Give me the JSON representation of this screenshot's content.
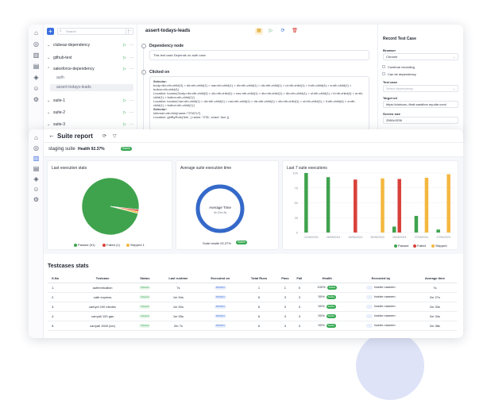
{
  "back_window": {
    "search_placeholder": "Search",
    "more_label": "···",
    "tree": [
      {
        "label": "clubeaz-dependency",
        "expanded": false
      },
      {
        "label": "github-test",
        "expanded": false
      },
      {
        "label": "salesforce-dependency",
        "expanded": true
      },
      {
        "label": "auth",
        "sub": true
      },
      {
        "label": "assert-todays-leads",
        "sub": true,
        "selected": true
      },
      {
        "label": "suite-1",
        "expanded": false
      },
      {
        "label": "suite-2",
        "expanded": false
      },
      {
        "label": "suite-3",
        "expanded": false
      }
    ],
    "title": "assert-todays-leads",
    "steps": [
      {
        "title": "Dependency node",
        "body": "This test case Depends on auth case"
      },
      {
        "title": "Clicked on",
        "body_lines": [
          "Selector:",
          "body>div:nth-child(3) > div:nth-child(1) > nav:nth-child(1) > div:nth-child(1) > div:nth-child(1) > ul:nth-child(1) > li:nth-child(4) > a:nth-child(1) > button:nth-child(1)",
          "Location: locator('body>div:nth-child(3) > div:nth-child(1) > nav:nth-child(1) > div:nth-child(1) > div:nth-child(1) > ul:nth-child(1) > li:nth-child(4) > a:nth-child(1) > button:nth-child(1)')",
          "Location: locator('nav:nth-child(1) > div:nth-child(1) > nav:nth-child(1) > div:nth-child(1) > div:nth-child(1) > ul:nth-child(1) > li:nth-child(4) > a:nth-child(1) > button:nth-child(1)')",
          "Selector:",
          "internal:role=link[name=\"STATU\"]",
          "Location: getByRole('link', { name: 'STA', exact: true })"
        ]
      }
    ],
    "record": {
      "title": "Record Test Case",
      "browser_label": "Browser",
      "browser_value": "Chrome",
      "continue_label": "Continue recording",
      "can_be_dep_label": "Can be dependency",
      "test_case_label": "Test case",
      "test_case_placeholder": "Select dependency",
      "target_label": "Target url",
      "target_value": "https://clubcan--flxsit.sandbox.my.site.com/",
      "screen_label": "Screen size",
      "screen_value": "2560x1536"
    }
  },
  "front_window": {
    "title": "Suite report",
    "suite_name": "staging suite",
    "health_text": "Health 92.37%",
    "health_badge": "Stable",
    "exec_stats": {
      "title": "Last execution stats",
      "legend": [
        "Passed (91)",
        "Failed (1)",
        "Skipped 1"
      ]
    },
    "avg_time": {
      "title": "Average suite execution time",
      "center_label": "Average Time",
      "center_value": "4h 10m 3s",
      "health_text": "Suite health 92.37%",
      "health_badge": "Stable"
    },
    "last7": {
      "title": "Last 7 suite executions",
      "legend": [
        "Passed",
        "Failed",
        "Skipped"
      ]
    },
    "testcases_title": "Testcases stats",
    "table_headers": [
      "S.No",
      "Testcase",
      "Status",
      "Last runtime",
      "Executed on",
      "Total Runs",
      "Pass",
      "Fail",
      "Health",
      "Executed by",
      "Average time"
    ],
    "rows": [
      {
        "no": "1.",
        "name": "authentication",
        "status": "Passed",
        "runtime": "7s",
        "executed": "05/2024",
        "total": "1",
        "pass": "1",
        "fail": "0",
        "health": "100%",
        "health_badge": "Stable",
        "by": "haider naseem",
        "avg": "7s"
      },
      {
        "no": "2.",
        "name": "café express",
        "status": "Passed",
        "runtime": "1m 54s",
        "executed": "05/2024",
        "total": "6",
        "pass": "3",
        "fail": "3",
        "health": "50%",
        "health_badge": "Stable",
        "by": "haider naseem",
        "avg": "2m 27s"
      },
      {
        "no": "3.",
        "name": "camyel 100 electric",
        "status": "Passed",
        "runtime": "1m 52s",
        "executed": "05/2024",
        "total": "6",
        "pass": "3",
        "fail": "3",
        "health": "50%",
        "health_badge": "Stable",
        "by": "haider naseem",
        "avg": "2m 33s"
      },
      {
        "no": "4.",
        "name": "carryall 100 gas",
        "status": "Passed",
        "runtime": "1m 55s",
        "executed": "05/2024",
        "total": "6",
        "pass": "3",
        "fail": "3",
        "health": "50%",
        "health_badge": "Stable",
        "by": "haider naseem",
        "avg": "2m 34s"
      },
      {
        "no": "5.",
        "name": "carryall 1500 (ice)",
        "status": "Passed",
        "runtime": "2m 7s",
        "executed": "05/2024",
        "total": "6",
        "pass": "3",
        "fail": "3",
        "health": "50%",
        "health_badge": "Stable",
        "by": "haider naseem",
        "avg": "2m 38s"
      }
    ]
  },
  "chart_data": [
    {
      "type": "pie",
      "title": "Last execution stats",
      "categories": [
        "Passed (91)",
        "Failed (1)",
        "Skipped 1"
      ],
      "values": [
        91,
        1,
        1
      ],
      "colors": [
        "#3fa34d",
        "#d9413a",
        "#f4b73f"
      ]
    },
    {
      "type": "bar",
      "title": "Last 7 suite executions",
      "categories": [
        "21/06/2024",
        "26/06/2024",
        "26/06/2024",
        "26/06/2024",
        "26/06/2024",
        "27/06/2024",
        "27/06/2024"
      ],
      "ylim": [
        0,
        100
      ],
      "yticks": [
        0,
        25,
        50,
        75,
        100
      ],
      "series": [
        {
          "name": "Passed",
          "color": "#3fa34d",
          "values": [
            100,
            93,
            0,
            0,
            10,
            28,
            5
          ]
        },
        {
          "name": "Failed",
          "color": "#d9413a",
          "values": [
            0,
            0,
            89,
            0,
            90,
            0,
            0
          ]
        },
        {
          "name": "Skipped",
          "color": "#f4b73f",
          "values": [
            0,
            0,
            0,
            91,
            0,
            92,
            98
          ]
        }
      ]
    }
  ]
}
